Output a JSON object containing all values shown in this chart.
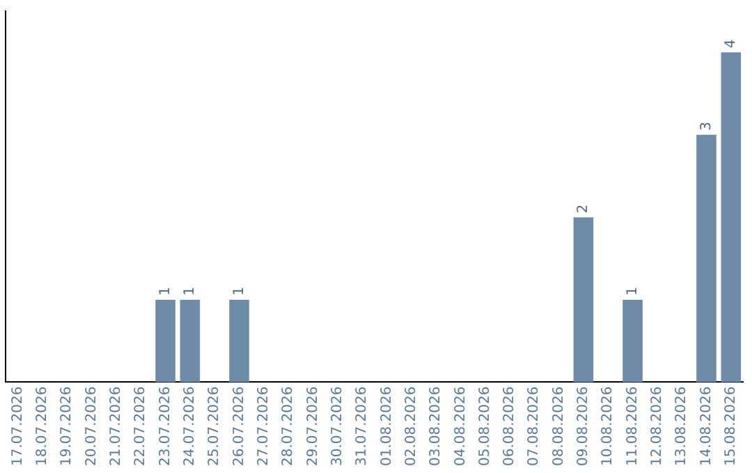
{
  "chart_data": {
    "type": "bar",
    "categories": [
      "17.07.2026",
      "18.07.2026",
      "19.07.2026",
      "20.07.2026",
      "21.07.2026",
      "22.07.2026",
      "23.07.2026",
      "24.07.2026",
      "25.07.2026",
      "26.07.2026",
      "27.07.2026",
      "28.07.2026",
      "29.07.2026",
      "30.07.2026",
      "31.07.2026",
      "01.08.2026",
      "02.08.2026",
      "03.08.2026",
      "04.08.2026",
      "05.08.2026",
      "06.08.2026",
      "07.08.2026",
      "08.08.2026",
      "09.08.2026",
      "10.08.2026",
      "11.08.2026",
      "12.08.2026",
      "13.08.2026",
      "14.08.2026",
      "15.08.2026"
    ],
    "values": [
      0,
      0,
      0,
      0,
      0,
      0,
      1,
      1,
      0,
      1,
      0,
      0,
      0,
      0,
      0,
      0,
      0,
      0,
      0,
      0,
      0,
      0,
      0,
      2,
      0,
      1,
      0,
      0,
      3,
      4
    ],
    "value_labels": [
      null,
      null,
      null,
      null,
      null,
      null,
      "1",
      "1",
      null,
      "1",
      null,
      null,
      null,
      null,
      null,
      null,
      null,
      null,
      null,
      null,
      null,
      null,
      null,
      "2",
      null,
      "1",
      null,
      null,
      "3",
      "4"
    ],
    "color": "#6e8caa",
    "grid": false,
    "legend": false,
    "tick_labels": "x"
  }
}
